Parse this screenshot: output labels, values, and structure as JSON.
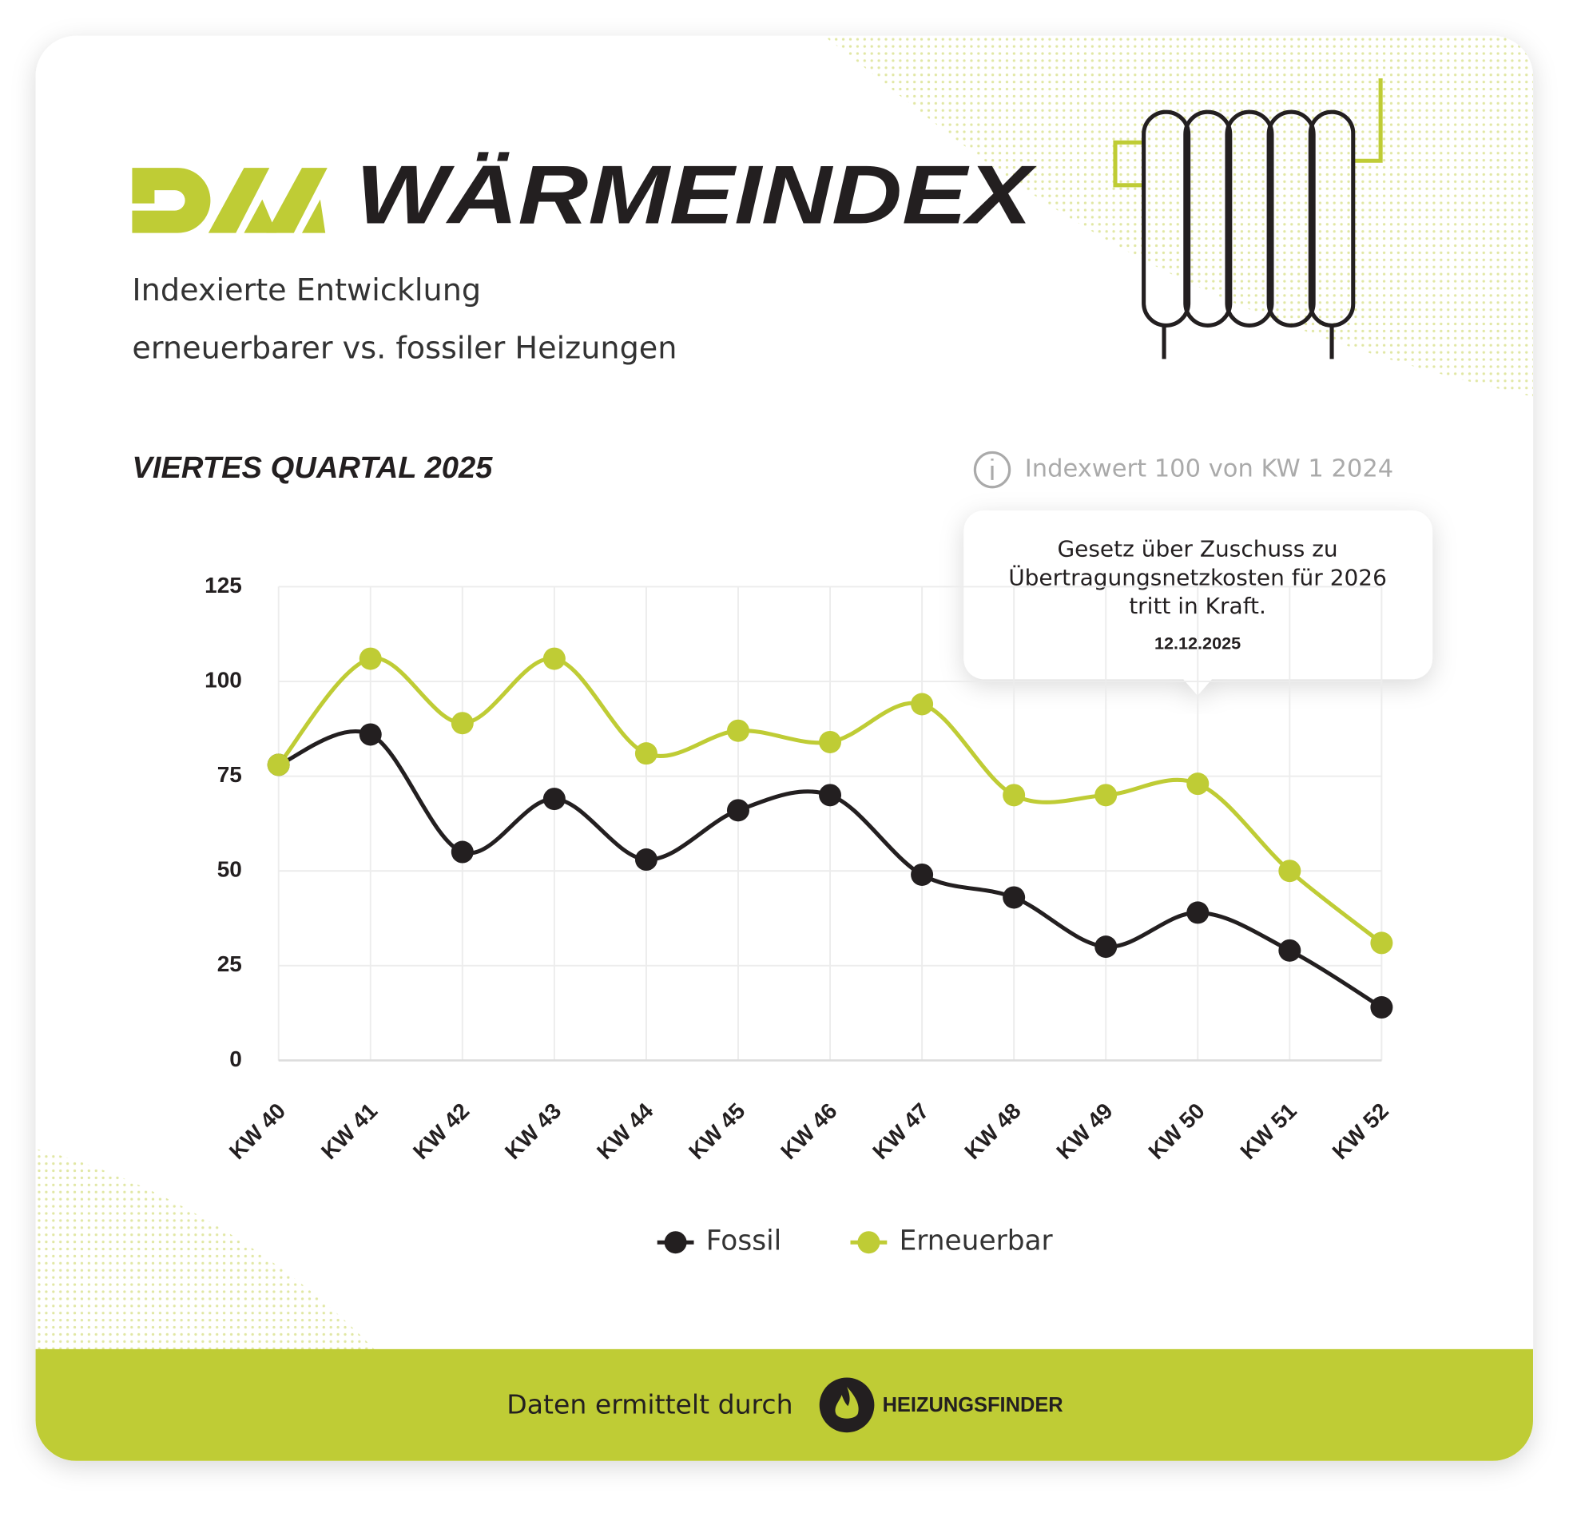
{
  "header": {
    "title": "WÄRMEINDEX",
    "subtitle": [
      "Indexierte Entwicklung",
      "erneuerbarer vs. fossiler Heizungen"
    ]
  },
  "chart_data": {
    "type": "line",
    "title": "VIERTES QUARTAL 2025",
    "note": "Indexwert 100 von KW 1 2024",
    "categories": [
      "KW 40",
      "KW 41",
      "KW 42",
      "KW 43",
      "KW 44",
      "KW 45",
      "KW 46",
      "KW 47",
      "KW 48",
      "KW 49",
      "KW 50",
      "KW 51",
      "KW 52"
    ],
    "series": [
      {
        "name": "Fossil",
        "color": "#231f20",
        "values": [
          78,
          86,
          55,
          69,
          53,
          66,
          70,
          49,
          43,
          30,
          39,
          29,
          14
        ]
      },
      {
        "name": "Erneuerbar",
        "color": "#bfcc35",
        "values": [
          78,
          106,
          89,
          106,
          81,
          87,
          84,
          94,
          70,
          70,
          73,
          50,
          31
        ]
      }
    ],
    "ylim": [
      0,
      125
    ],
    "yticks": [
      0,
      25,
      50,
      75,
      100,
      125
    ],
    "grid": true,
    "smooth": true,
    "legend": "bottom",
    "annotation": {
      "text": [
        "Gesetz über Zuschuss zu",
        "Übertragungsnetzkosten für 2026",
        "tritt in Kraft."
      ],
      "date": "12.12.2025"
    }
  },
  "footer": {
    "text": "Daten ermittelt durch",
    "brand": "HEIZUNGSFINDER"
  }
}
